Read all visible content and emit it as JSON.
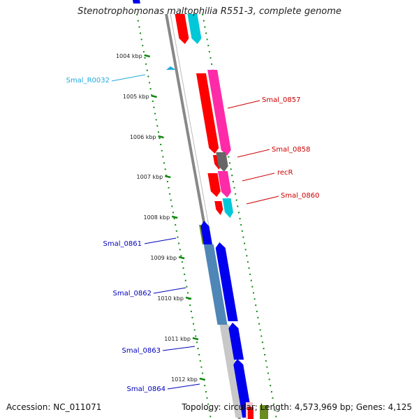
{
  "title": "Stenotrophomonas maltophilia R551-3, complete genome",
  "footer": {
    "accession": "Accession: NC_011071",
    "topology": "Topology: circular; Length: 4,573,969 bp; Genes: 4,125"
  },
  "colors": {
    "forward_cds": "#ff0000",
    "reverse_cds": "#0000ee",
    "forward_trna": "#ff2aa8",
    "forward_misc": "#666666",
    "reverse_trna": "#00c8d8",
    "cog_green": "#6b8c21",
    "cog_blue": "#4f86b8",
    "cog_gray": "#c8c8c8",
    "backbone": "#888888",
    "tick": "#118811",
    "label_red": "#cc0000",
    "label_blue": "#0000bb",
    "label_cyan": "#22aadd"
  },
  "ticks": [
    "1004 kbp",
    "1005 kbp",
    "1006 kbp",
    "1007 kbp",
    "1008 kbp",
    "1009 kbp",
    "1010 kbp",
    "1011 kbp",
    "1012 kbp"
  ],
  "gene_labels": [
    {
      "text": "Smal_R0032",
      "color": "label_cyan"
    },
    {
      "text": "Smal_0857",
      "color": "label_red"
    },
    {
      "text": "Smal_0858",
      "color": "label_red"
    },
    {
      "text": "recR",
      "color": "label_red"
    },
    {
      "text": "Smal_0860",
      "color": "label_red"
    },
    {
      "text": "Smal_0861",
      "color": "label_blue"
    },
    {
      "text": "Smal_0862",
      "color": "label_blue"
    },
    {
      "text": "Smal_0863",
      "color": "label_blue"
    },
    {
      "text": "Smal_0864",
      "color": "label_blue"
    }
  ]
}
